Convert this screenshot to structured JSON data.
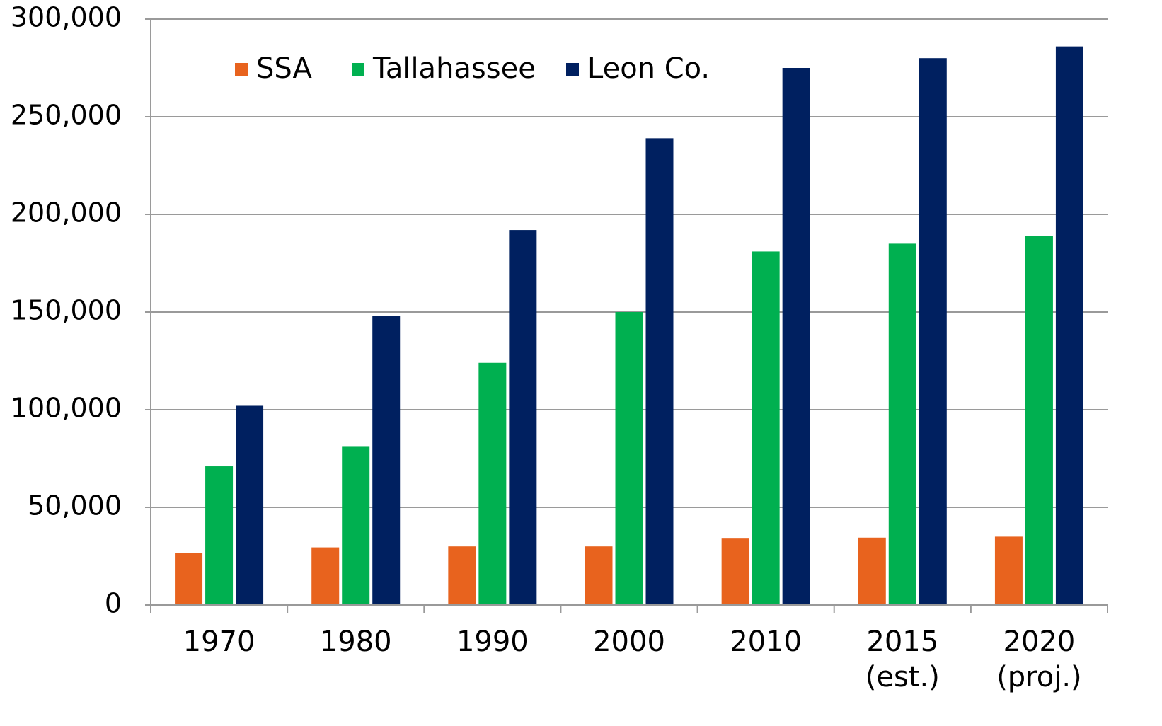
{
  "chart_data": {
    "type": "bar",
    "categories": [
      "1970",
      "1980",
      "1990",
      "2000",
      "2010",
      "2015 (est.)",
      "2020 (proj.)"
    ],
    "series": [
      {
        "name": "SSA",
        "color": "#e8631e",
        "values": [
          26500,
          29500,
          30000,
          30000,
          34000,
          34500,
          35000
        ]
      },
      {
        "name": "Tallahassee",
        "color": "#00b050",
        "values": [
          71000,
          81000,
          124000,
          150000,
          181000,
          185000,
          189000
        ]
      },
      {
        "name": "Leon Co.",
        "color": "#002060",
        "values": [
          102000,
          148000,
          192000,
          239000,
          275000,
          280000,
          286000
        ]
      }
    ],
    "ylim": [
      0,
      300000
    ],
    "yticks": [
      0,
      {
        "value": 50000,
        "label": "50,000"
      },
      {
        "value": 100000,
        "label": "100,000"
      },
      {
        "value": 150000,
        "label": "150,000"
      },
      {
        "value": 200000,
        "label": "200,000"
      },
      {
        "value": 250000,
        "label": "250,000"
      },
      {
        "value": 300000,
        "label": "300,000"
      }
    ],
    "grid": true,
    "legend": "top"
  }
}
